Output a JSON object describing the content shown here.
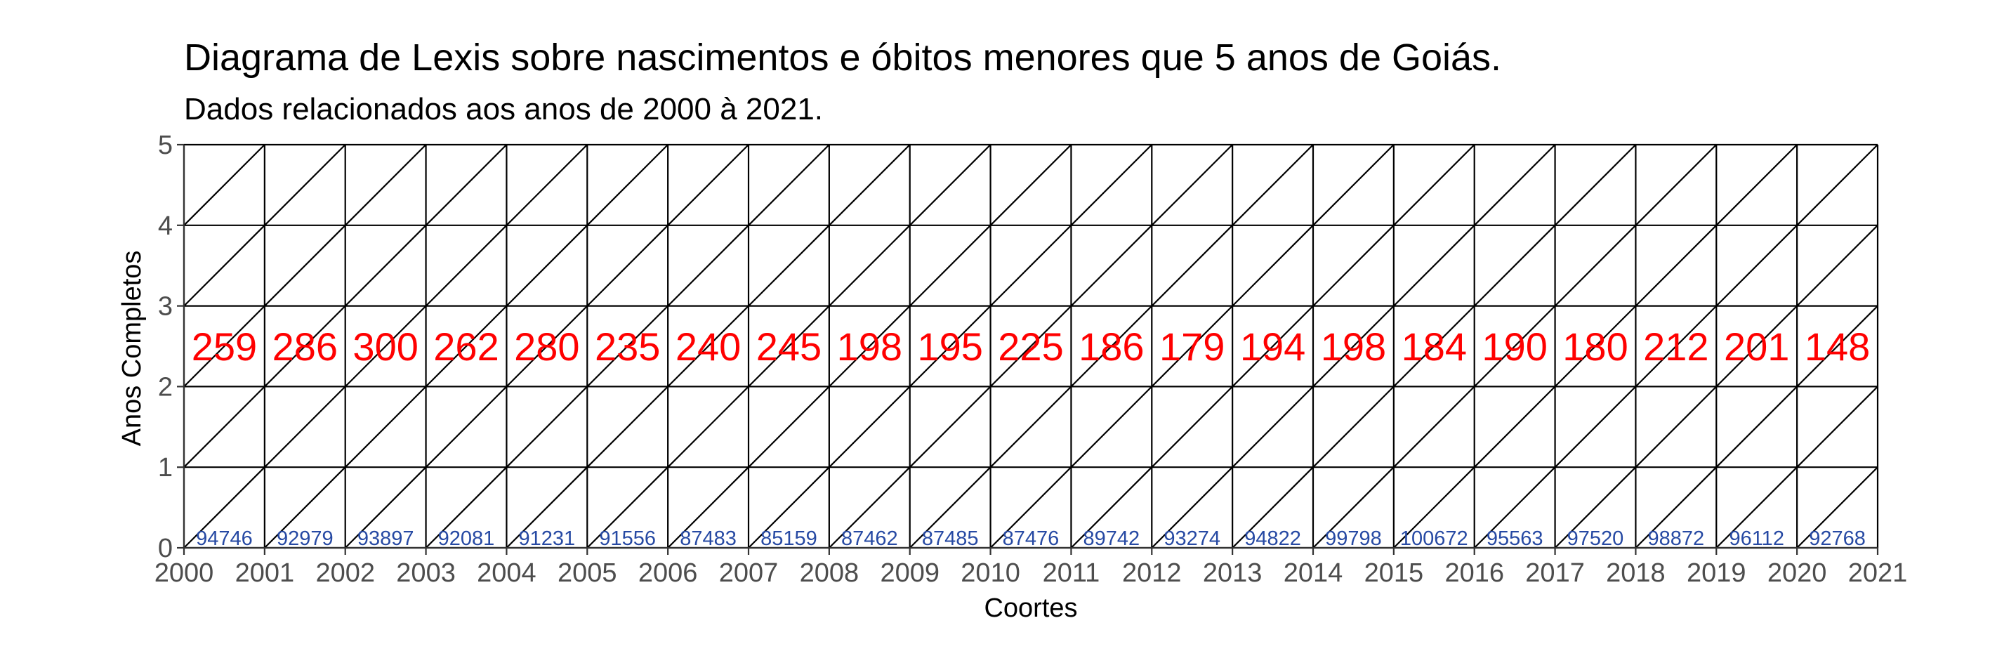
{
  "chart_data": {
    "type": "lexis-diagram",
    "title": "Diagrama de Lexis sobre nascimentos e óbitos menores que 5 anos de Goiás.",
    "subtitle": "Dados relacionados aos anos de 2000 à 2021.",
    "xlabel": "Coortes",
    "ylabel": "Anos Completos",
    "xlim": [
      2000,
      2021
    ],
    "ylim": [
      0,
      5
    ],
    "x_ticks": [
      "2000",
      "2001",
      "2002",
      "2003",
      "2004",
      "2005",
      "2006",
      "2007",
      "2008",
      "2009",
      "2010",
      "2011",
      "2012",
      "2013",
      "2014",
      "2015",
      "2016",
      "2017",
      "2018",
      "2019",
      "2020",
      "2021"
    ],
    "y_ticks": [
      "0",
      "1",
      "2",
      "3",
      "4",
      "5"
    ],
    "grid": true,
    "death_label_age": 2.5,
    "birth_label_age": 0.12,
    "series": [
      {
        "name": "óbitos",
        "color": "#ff0000",
        "values": [
          259,
          286,
          300,
          262,
          280,
          235,
          240,
          245,
          198,
          195,
          225,
          186,
          179,
          194,
          198,
          184,
          190,
          180,
          212,
          201,
          148
        ]
      },
      {
        "name": "nascimentos",
        "color": "#2649a3",
        "values": [
          94746,
          92979,
          93897,
          92081,
          91231,
          91556,
          87483,
          85159,
          87462,
          87485,
          87476,
          89742,
          93274,
          94822,
          99798,
          100672,
          95563,
          97520,
          98872,
          96112,
          92768
        ]
      }
    ]
  }
}
